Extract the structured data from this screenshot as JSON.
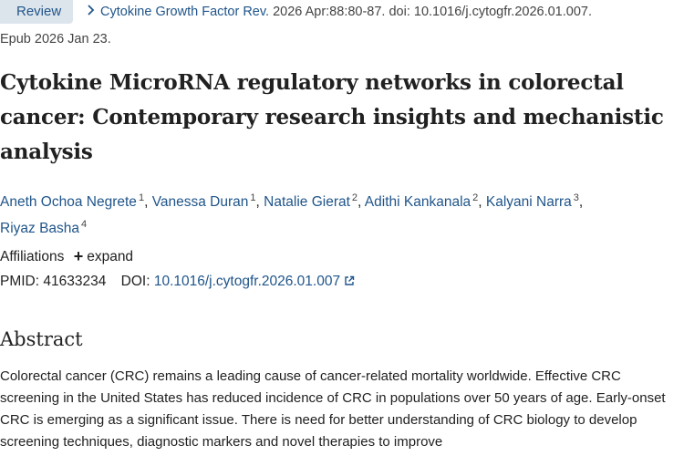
{
  "header": {
    "review_label": "Review",
    "journal": "Cytokine Growth Factor Rev.",
    "citation_rest": " 2026 Apr:88:80-87. doi: 10.1016/j.cytogfr.2026.01.007.",
    "epub": "Epub 2026 Jan 23."
  },
  "article": {
    "title": "Cytokine MicroRNA regulatory networks in colorectal cancer: Contemporary research insights and mechanistic analysis"
  },
  "authors": [
    {
      "name": "Aneth Ochoa Negrete",
      "aff": "1"
    },
    {
      "name": "Vanessa Duran",
      "aff": "1"
    },
    {
      "name": "Natalie Gierat",
      "aff": "2"
    },
    {
      "name": "Adithi Kankanala",
      "aff": "2"
    },
    {
      "name": "Kalyani Narra",
      "aff": "3"
    },
    {
      "name": "Riyaz Basha",
      "aff": "4"
    }
  ],
  "affiliations": {
    "label": "Affiliations",
    "expand_label": "expand",
    "expand_icon": "plus-icon"
  },
  "identifiers": {
    "pmid_label": "PMID:",
    "pmid": "41633234",
    "doi_label": "DOI:",
    "doi": "10.1016/j.cytogfr.2026.01.007",
    "doi_icon": "external-link-icon"
  },
  "abstract": {
    "heading": "Abstract",
    "text": "Colorectal cancer (CRC) remains a leading cause of cancer-related mortality worldwide. Effective CRC screening in the United States has reduced incidence of CRC in populations over 50 years of age. Early-onset CRC is emerging as a significant issue. There is need for better understanding of CRC biology to develop screening techniques, diagnostic markers and novel therapies to improve"
  },
  "colors": {
    "link": "#20558a",
    "badge_bg": "#dde5ec",
    "text": "#212121"
  }
}
